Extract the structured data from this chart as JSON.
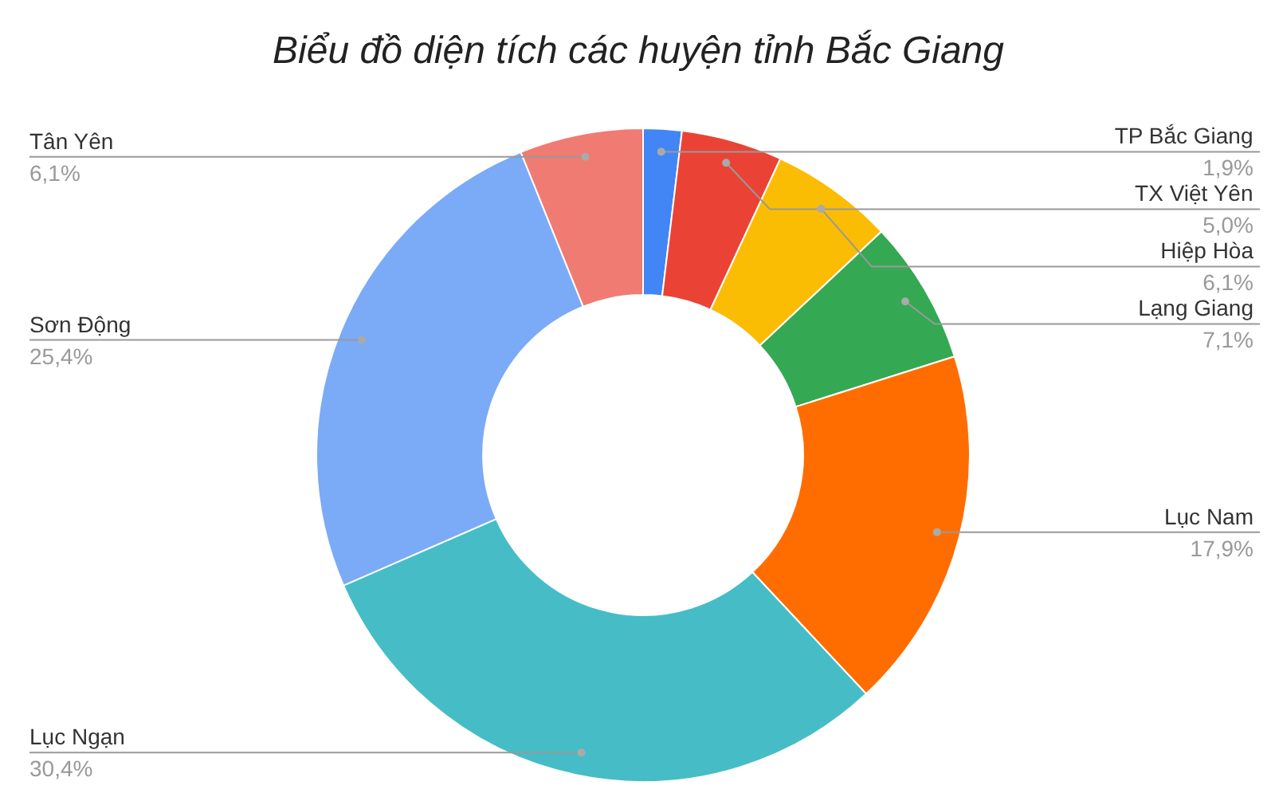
{
  "chart_data": {
    "type": "donut",
    "title": "Biểu đồ diện tích các huyện tỉnh Bắc Giang",
    "categories": [
      "TP Bắc Giang",
      "TX Việt Yên",
      "Hiệp Hòa",
      "Lạng Giang",
      "Lục Nam",
      "Lục Ngạn",
      "Sơn Động",
      "Tân Yên"
    ],
    "values": [
      1.9,
      5.0,
      6.1,
      7.1,
      17.9,
      30.4,
      25.4,
      6.1
    ],
    "value_labels": [
      "1,9%",
      "5,0%",
      "6,1%",
      "7,1%",
      "17,9%",
      "30,4%",
      "25,4%",
      "6,1%"
    ],
    "colors": [
      "#4285f4",
      "#ea4335",
      "#fbbc04",
      "#34a853",
      "#ff6d01",
      "#46bdc6",
      "#7baaf7",
      "#f07b72"
    ]
  }
}
